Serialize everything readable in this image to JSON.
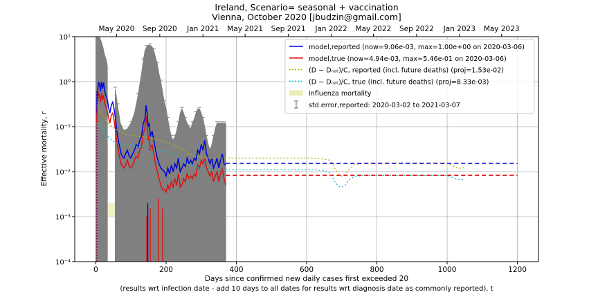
{
  "chart_data": {
    "type": "line",
    "title": "Ireland, Scenario= seasonal + vaccination",
    "subtitle": "Vienna, October 2020 [jbudzin@gmail.com]",
    "xlabel": "Days since confirmed new daily cases first exceeded 20",
    "xlabel2": "(results wrt infection date - add 10 days to all dates for results wrt diagnosis date as commonly reported), t",
    "ylabel": "Effective mortality, r",
    "xlim": [
      -60,
      1260
    ],
    "ylim": [
      0.0001,
      10
    ],
    "yscale": "log",
    "grid": true,
    "legend_position": "top-right",
    "x_ticks": [
      0,
      200,
      400,
      600,
      800,
      1000,
      1200
    ],
    "y_ticks": [
      {
        "value": 0.0001,
        "label": "10⁻⁴"
      },
      {
        "value": 0.001,
        "label": "10⁻³"
      },
      {
        "value": 0.01,
        "label": "10⁻²"
      },
      {
        "value": 0.1,
        "label": "10⁻¹"
      },
      {
        "value": 1,
        "label": "10⁰"
      },
      {
        "value": 10,
        "label": "10¹"
      }
    ],
    "top_axis_ticks": [
      {
        "label": "May 2020",
        "x": 59
      },
      {
        "label": "Sep 2020",
        "x": 182
      },
      {
        "label": "Jan 2021",
        "x": 305
      },
      {
        "label": "May 2021",
        "x": 425
      },
      {
        "label": "Sep 2021",
        "x": 548
      },
      {
        "label": "Jan 2022",
        "x": 670
      },
      {
        "label": "May 2022",
        "x": 790
      },
      {
        "label": "Sep 2022",
        "x": 913
      },
      {
        "label": "Jan 2023",
        "x": 1035
      },
      {
        "label": "May 2023",
        "x": 1155
      }
    ],
    "legend": [
      {
        "label": "model,reported (now=9.06e-03, max=1.00e+00 on 2020-03-06)",
        "color": "#0000dd",
        "style": "solid"
      },
      {
        "label": "model,true (now=4.94e-03, max=5.46e-01 on 2020-03-06)",
        "color": "#dd1111",
        "style": "solid"
      },
      {
        "label": "(D − Dₙₐₜ)/C, reported (incl. future deaths) (proj=1.53e-02)",
        "color": "#b5b514",
        "style": "dotted"
      },
      {
        "label": "(D − Dₙₐₜ)/C, true (incl. future deaths) (proj=8.33e-03)",
        "color": "#17becf",
        "style": "dotted"
      },
      {
        "label": "influenza mortality",
        "color": "#eeeebb",
        "style": "patch"
      },
      {
        "label": "std.error,reported: 2020-03-02 to 2021-03-07",
        "color": "#808080",
        "style": "errorbar"
      }
    ],
    "influenza_band": {
      "x": [
        0,
        370
      ],
      "y": [
        0.001,
        0.002
      ]
    },
    "series": [
      {
        "name": "model,reported",
        "color": "#0000dd",
        "x": [
          2,
          4,
          6,
          8,
          10,
          13,
          16,
          19,
          22,
          25,
          28,
          31,
          34,
          37,
          40,
          44,
          48,
          52,
          56,
          60,
          64,
          68,
          72,
          76,
          80,
          85,
          90,
          95,
          100,
          105,
          110,
          115,
          120,
          125,
          130,
          135,
          140,
          143,
          146,
          149,
          152,
          155,
          160,
          165,
          170,
          175,
          180,
          185,
          190,
          195,
          200,
          205,
          210,
          215,
          220,
          225,
          230,
          235,
          240,
          245,
          250,
          255,
          260,
          265,
          270,
          275,
          280,
          285,
          290,
          295,
          300,
          305,
          310,
          315,
          320,
          325,
          330,
          335,
          340,
          345,
          350,
          355,
          360,
          365,
          370
        ],
        "y": [
          0.2,
          0.45,
          0.75,
          0.95,
          0.9,
          0.6,
          1.0,
          0.7,
          0.95,
          0.65,
          0.5,
          0.45,
          0.35,
          0.25,
          0.2,
          0.3,
          0.35,
          0.25,
          0.15,
          0.08,
          0.05,
          0.035,
          0.025,
          0.022,
          0.02,
          0.025,
          0.03,
          0.022,
          0.02,
          0.025,
          0.03,
          0.04,
          0.035,
          0.05,
          0.06,
          0.12,
          0.15,
          0.3,
          0.2,
          0.1,
          0.12,
          0.06,
          0.08,
          0.05,
          0.03,
          0.02,
          0.015,
          0.012,
          0.011,
          0.01,
          0.008,
          0.012,
          0.009,
          0.014,
          0.01,
          0.015,
          0.012,
          0.02,
          0.01,
          0.012,
          0.015,
          0.013,
          0.02,
          0.015,
          0.018,
          0.015,
          0.02,
          0.018,
          0.03,
          0.025,
          0.04,
          0.03,
          0.05,
          0.025,
          0.02,
          0.015,
          0.02,
          0.012,
          0.015,
          0.02,
          0.012,
          0.018,
          0.025,
          0.015,
          0.014
        ]
      },
      {
        "name": "model,true",
        "color": "#dd1111",
        "x": [
          2,
          4,
          6,
          8,
          10,
          13,
          16,
          19,
          22,
          25,
          28,
          31,
          34,
          37,
          40,
          44,
          48,
          52,
          56,
          60,
          64,
          68,
          72,
          76,
          80,
          85,
          90,
          95,
          100,
          105,
          110,
          115,
          120,
          125,
          130,
          135,
          140,
          143,
          146,
          149,
          152,
          155,
          160,
          165,
          170,
          175,
          180,
          185,
          190,
          195,
          200,
          205,
          210,
          215,
          220,
          225,
          230,
          235,
          240,
          245,
          250,
          255,
          260,
          265,
          270,
          275,
          280,
          285,
          290,
          295,
          300,
          305,
          310,
          315,
          320,
          325,
          330,
          335,
          340,
          345,
          350,
          355,
          360,
          365,
          370
        ],
        "y": [
          0.12,
          0.3,
          0.45,
          0.55,
          0.5,
          0.35,
          0.55,
          0.4,
          0.5,
          0.35,
          0.28,
          0.25,
          0.2,
          0.15,
          0.12,
          0.18,
          0.2,
          0.14,
          0.08,
          0.045,
          0.03,
          0.02,
          0.015,
          0.013,
          0.012,
          0.014,
          0.018,
          0.013,
          0.012,
          0.014,
          0.018,
          0.022,
          0.02,
          0.03,
          0.035,
          0.07,
          0.09,
          0.17,
          0.11,
          0.05,
          0.06,
          0.03,
          0.04,
          0.025,
          0.015,
          0.01,
          0.007,
          0.005,
          0.004,
          0.004,
          0.0035,
          0.005,
          0.004,
          0.006,
          0.0045,
          0.007,
          0.005,
          0.009,
          0.0045,
          0.005,
          0.007,
          0.006,
          0.009,
          0.007,
          0.008,
          0.007,
          0.009,
          0.008,
          0.014,
          0.012,
          0.018,
          0.015,
          0.02,
          0.012,
          0.01,
          0.008,
          0.01,
          0.006,
          0.008,
          0.01,
          0.006,
          0.009,
          0.012,
          0.007,
          0.005
        ]
      },
      {
        "name": "(D - Dnat)/C, reported",
        "color": "#b5b514",
        "x": [
          5,
          15,
          25,
          35,
          45,
          55,
          65,
          80,
          100,
          120,
          140,
          160,
          180,
          200,
          220,
          240,
          260,
          280,
          300,
          320,
          340,
          360,
          380,
          420,
          460,
          500,
          540,
          580,
          620,
          650,
          665,
          672,
          680,
          690,
          700,
          710,
          720,
          735,
          760,
          800,
          850,
          900,
          950,
          1000,
          1020,
          1030,
          1040,
          1050
        ],
        "y": [
          0.3,
          0.2,
          0.15,
          0.12,
          0.1,
          0.09,
          0.08,
          0.07,
          0.065,
          0.06,
          0.06,
          0.055,
          0.05,
          0.045,
          0.04,
          0.032,
          0.026,
          0.022,
          0.021,
          0.02,
          0.02,
          0.02,
          0.02,
          0.02,
          0.02,
          0.02,
          0.02,
          0.02,
          0.02,
          0.019,
          0.018,
          0.016,
          0.012,
          0.009,
          0.008,
          0.0085,
          0.011,
          0.014,
          0.0155,
          0.0155,
          0.0155,
          0.0155,
          0.0155,
          0.0155,
          0.013,
          0.012,
          0.012,
          0.013
        ]
      },
      {
        "name": "(D - Dnat)/C, true",
        "color": "#17becf",
        "x": [
          5,
          15,
          25,
          35,
          45,
          55,
          65,
          80,
          100,
          120,
          140,
          160,
          180,
          200,
          220,
          240,
          260,
          280,
          300,
          320,
          340,
          360,
          380,
          420,
          460,
          500,
          540,
          580,
          620,
          650,
          665,
          672,
          680,
          690,
          700,
          710,
          720,
          735,
          760,
          800,
          850,
          900,
          950,
          1000,
          1020,
          1030,
          1040,
          1050
        ],
        "y": [
          0.15,
          0.1,
          0.075,
          0.06,
          0.05,
          0.045,
          0.042,
          0.04,
          0.038,
          0.036,
          0.035,
          0.033,
          0.03,
          0.028,
          0.024,
          0.019,
          0.015,
          0.013,
          0.012,
          0.011,
          0.011,
          0.011,
          0.011,
          0.011,
          0.011,
          0.011,
          0.011,
          0.011,
          0.011,
          0.0105,
          0.0095,
          0.008,
          0.006,
          0.0048,
          0.0045,
          0.005,
          0.0065,
          0.0078,
          0.0083,
          0.0083,
          0.0083,
          0.0083,
          0.0083,
          0.0083,
          0.0072,
          0.0068,
          0.0066,
          0.007
        ]
      }
    ],
    "projections": [
      {
        "name": "reported projection",
        "color": "#0000dd",
        "x": [
          370,
          1200
        ],
        "y": 0.0153
      },
      {
        "name": "true projection",
        "color": "#dd1111",
        "x": [
          370,
          1200
        ],
        "y": 0.0083
      }
    ],
    "early_spikes": [
      {
        "color": "#0000dd",
        "x": 2,
        "y": [
          0.0001,
          0.6
        ]
      },
      {
        "color": "#dd1111",
        "x": 3,
        "y": [
          0.0001,
          0.35
        ]
      },
      {
        "color": "#dd1111",
        "x": 145,
        "y": [
          0.0001,
          0.001
        ]
      },
      {
        "color": "#dd1111",
        "x": 155,
        "y": [
          0.0001,
          0.0015
        ]
      },
      {
        "color": "#dd1111",
        "x": 178,
        "y": [
          0.0001,
          0.0025
        ]
      },
      {
        "color": "#dd1111",
        "x": 190,
        "y": [
          0.0001,
          0.0015
        ]
      },
      {
        "color": "#0000dd",
        "x": 148,
        "y": [
          0.0001,
          0.002
        ]
      }
    ],
    "std_error_envelope": {
      "color": "#808080",
      "x": [
        0,
        5,
        10,
        15,
        20,
        25,
        30,
        33,
        36,
        40,
        45,
        50,
        55,
        58,
        62,
        70,
        80,
        90,
        100,
        110,
        120,
        130,
        135,
        140,
        145,
        150,
        155,
        160,
        165,
        170,
        175,
        180,
        185,
        190,
        195,
        200,
        205,
        210,
        215,
        220,
        225,
        230,
        235,
        240,
        245,
        250,
        255,
        260,
        265,
        270,
        275,
        280,
        285,
        290,
        295,
        300,
        305,
        310,
        315,
        320,
        325,
        330,
        335,
        340,
        345,
        350,
        355,
        360,
        365,
        370
      ],
      "upper": [
        10,
        10,
        10,
        8,
        6,
        4,
        3,
        2.2,
        1.8,
        1.5,
        1.3,
        1.0,
        0.7,
        0.5,
        0.3,
        0.12,
        0.08,
        0.09,
        0.12,
        0.2,
        0.5,
        1.5,
        3,
        5,
        6,
        6.5,
        6.5,
        6,
        5,
        3.5,
        2.5,
        1.5,
        1.0,
        0.6,
        0.35,
        0.25,
        0.15,
        0.09,
        0.06,
        0.05,
        0.06,
        0.08,
        0.12,
        0.2,
        0.25,
        0.2,
        0.15,
        0.12,
        0.1,
        0.09,
        0.12,
        0.15,
        0.2,
        0.25,
        0.25,
        0.2,
        0.15,
        0.1,
        0.06,
        0.04,
        0.03,
        0.04,
        0.06,
        0.09,
        0.12,
        0.12,
        0.12,
        0.12,
        0.12,
        0.12
      ],
      "gap": [
        33,
        55
      ]
    }
  }
}
